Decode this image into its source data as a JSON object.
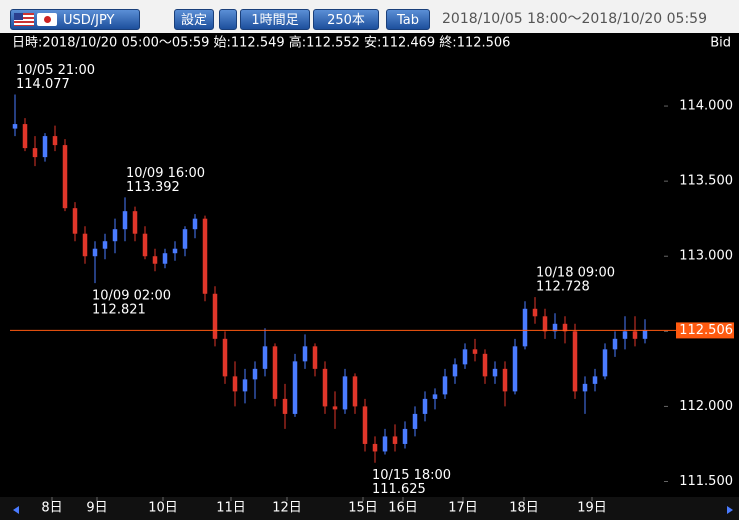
{
  "toolbar": {
    "pair": "USD/JPY",
    "settings": "設定",
    "timeframe": "1時間足",
    "count": "250本",
    "tab": "Tab",
    "range": "2018/10/05 18:00～2018/10/20 05:59"
  },
  "chart_data": {
    "type": "candlestick",
    "info": "日時:2018/10/20 05:00～05:59 始:112.549 高:112.552 安:112.469 終:112.506",
    "price_side": "Bid",
    "up_color": "#4a7bff",
    "down_color": "#e0362a",
    "xlim": [
      -0.5,
      64.5
    ],
    "xticks": [
      {
        "value": 3.7,
        "label": "8日"
      },
      {
        "value": 8.2,
        "label": "9日"
      },
      {
        "value": 14.8,
        "label": "10日"
      },
      {
        "value": 21.6,
        "label": "11日"
      },
      {
        "value": 27.2,
        "label": "12日"
      },
      {
        "value": 34.8,
        "label": "15日"
      },
      {
        "value": 38.8,
        "label": "16日"
      },
      {
        "value": 44.8,
        "label": "17日"
      },
      {
        "value": 50.9,
        "label": "18日"
      },
      {
        "value": 57.7,
        "label": "19日"
      }
    ],
    "ylim": [
      111.41,
      114.34
    ],
    "yticks": [
      {
        "value": 114,
        "label": "114.000"
      },
      {
        "value": 113.5,
        "label": "113.500"
      },
      {
        "value": 113,
        "label": "113.000"
      },
      {
        "value": 112.5,
        "label": "112.500"
      },
      {
        "value": 112,
        "label": "112.000"
      },
      {
        "value": 111.5,
        "label": "111.500"
      }
    ],
    "current_price": 112.506,
    "current_color": "#ff5a10",
    "annotations": [
      {
        "label": "10/05 21:00",
        "value": 114.077,
        "x": 0
      },
      {
        "label": "10/09 16:00",
        "value": 113.392,
        "x": 11
      },
      {
        "label": "10/09 02:00",
        "value": 112.821,
        "x": 8
      },
      {
        "label": "10/15 18:00",
        "value": 111.625,
        "x": 36
      },
      {
        "label": "10/18 09:00",
        "value": 112.728,
        "x": 52
      }
    ],
    "ohlc": [
      [
        113.85,
        114.077,
        113.8,
        113.88
      ],
      [
        113.88,
        113.92,
        113.7,
        113.72
      ],
      [
        113.72,
        113.8,
        113.6,
        113.66
      ],
      [
        113.66,
        113.82,
        113.63,
        113.8
      ],
      [
        113.8,
        113.87,
        113.7,
        113.74
      ],
      [
        113.74,
        113.78,
        113.3,
        113.32
      ],
      [
        113.32,
        113.36,
        113.1,
        113.15
      ],
      [
        113.15,
        113.2,
        112.95,
        113.0
      ],
      [
        113.0,
        113.1,
        112.821,
        113.05
      ],
      [
        113.05,
        113.15,
        112.98,
        113.1
      ],
      [
        113.1,
        113.25,
        113.02,
        113.18
      ],
      [
        113.18,
        113.392,
        113.1,
        113.3
      ],
      [
        113.3,
        113.33,
        113.1,
        113.15
      ],
      [
        113.15,
        113.2,
        112.98,
        113.0
      ],
      [
        113.0,
        113.05,
        112.9,
        112.95
      ],
      [
        112.95,
        113.05,
        112.92,
        113.02
      ],
      [
        113.02,
        113.1,
        112.97,
        113.05
      ],
      [
        113.05,
        113.2,
        113.0,
        113.18
      ],
      [
        113.18,
        113.28,
        113.12,
        113.25
      ],
      [
        113.25,
        113.27,
        112.7,
        112.75
      ],
      [
        112.75,
        112.8,
        112.4,
        112.45
      ],
      [
        112.45,
        112.5,
        112.15,
        112.2
      ],
      [
        112.2,
        112.3,
        112.0,
        112.1
      ],
      [
        112.1,
        112.25,
        112.02,
        112.18
      ],
      [
        112.18,
        112.3,
        112.05,
        112.25
      ],
      [
        112.25,
        112.52,
        112.2,
        112.4
      ],
      [
        112.4,
        112.42,
        112.0,
        112.05
      ],
      [
        112.05,
        112.15,
        111.85,
        111.95
      ],
      [
        111.95,
        112.35,
        111.93,
        112.3
      ],
      [
        112.3,
        112.48,
        112.25,
        112.4
      ],
      [
        112.4,
        112.42,
        112.2,
        112.25
      ],
      [
        112.25,
        112.3,
        111.95,
        112.0
      ],
      [
        112.0,
        112.1,
        111.85,
        111.98
      ],
      [
        111.98,
        112.25,
        111.95,
        112.2
      ],
      [
        112.2,
        112.22,
        111.95,
        112.0
      ],
      [
        112.0,
        112.05,
        111.7,
        111.75
      ],
      [
        111.75,
        111.8,
        111.625,
        111.7
      ],
      [
        111.7,
        111.85,
        111.68,
        111.8
      ],
      [
        111.8,
        111.88,
        111.7,
        111.75
      ],
      [
        111.75,
        111.9,
        111.72,
        111.85
      ],
      [
        111.85,
        112.0,
        111.8,
        111.95
      ],
      [
        111.95,
        112.1,
        111.9,
        112.05
      ],
      [
        112.05,
        112.12,
        111.98,
        112.08
      ],
      [
        112.08,
        112.25,
        112.05,
        112.2
      ],
      [
        112.2,
        112.32,
        112.15,
        112.28
      ],
      [
        112.28,
        112.42,
        112.25,
        112.38
      ],
      [
        112.38,
        112.45,
        112.3,
        112.35
      ],
      [
        112.35,
        112.38,
        112.15,
        112.2
      ],
      [
        112.2,
        112.3,
        112.15,
        112.25
      ],
      [
        112.25,
        112.3,
        112.0,
        112.1
      ],
      [
        112.1,
        112.45,
        112.08,
        112.4
      ],
      [
        112.4,
        112.7,
        112.38,
        112.65
      ],
      [
        112.65,
        112.728,
        112.55,
        112.6
      ],
      [
        112.6,
        112.65,
        112.45,
        112.5
      ],
      [
        112.5,
        112.62,
        112.45,
        112.55
      ],
      [
        112.55,
        112.6,
        112.42,
        112.5
      ],
      [
        112.5,
        112.55,
        112.05,
        112.1
      ],
      [
        112.1,
        112.2,
        111.95,
        112.15
      ],
      [
        112.15,
        112.25,
        112.1,
        112.2
      ],
      [
        112.2,
        112.42,
        112.18,
        112.38
      ],
      [
        112.38,
        112.5,
        112.33,
        112.45
      ],
      [
        112.45,
        112.6,
        112.38,
        112.5
      ],
      [
        112.5,
        112.6,
        112.4,
        112.45
      ],
      [
        112.45,
        112.58,
        112.42,
        112.506
      ]
    ]
  }
}
